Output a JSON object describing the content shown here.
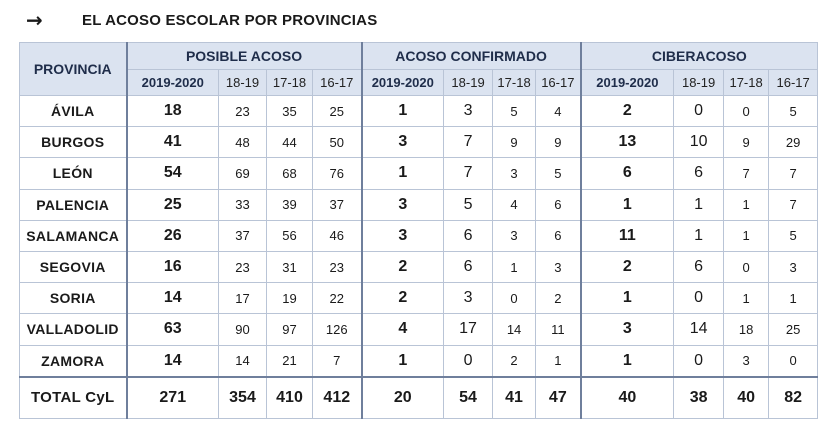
{
  "header": {
    "arrow_icon": "→",
    "title": "EL ACOSO ESCOLAR POR PROVINCIAS"
  },
  "table": {
    "province_header": "PROVINCIA",
    "groups": [
      "POSIBLE ACOSO",
      "ACOSO CONFIRMADO",
      "CIBERACOSO"
    ],
    "years": [
      "2019-2020",
      "18-19",
      "17-18",
      "16-17"
    ],
    "rows": [
      {
        "name": "ÁVILA",
        "v": [
          "18",
          "23",
          "35",
          "25",
          "1",
          "3",
          "5",
          "4",
          "2",
          "0",
          "0",
          "5"
        ]
      },
      {
        "name": "BURGOS",
        "v": [
          "41",
          "48",
          "44",
          "50",
          "3",
          "7",
          "9",
          "9",
          "13",
          "10",
          "9",
          "29"
        ]
      },
      {
        "name": "LEÓN",
        "v": [
          "54",
          "69",
          "68",
          "76",
          "1",
          "7",
          "3",
          "5",
          "6",
          "6",
          "7",
          "7"
        ]
      },
      {
        "name": "PALENCIA",
        "v": [
          "25",
          "33",
          "39",
          "37",
          "3",
          "5",
          "4",
          "6",
          "1",
          "1",
          "1",
          "7"
        ]
      },
      {
        "name": "SALAMANCA",
        "v": [
          "26",
          "37",
          "56",
          "46",
          "3",
          "6",
          "3",
          "6",
          "11",
          "1",
          "1",
          "5"
        ]
      },
      {
        "name": "SEGOVIA",
        "v": [
          "16",
          "23",
          "31",
          "23",
          "2",
          "6",
          "1",
          "3",
          "2",
          "6",
          "0",
          "3"
        ]
      },
      {
        "name": "SORIA",
        "v": [
          "14",
          "17",
          "19",
          "22",
          "2",
          "3",
          "0",
          "2",
          "1",
          "0",
          "1",
          "1"
        ]
      },
      {
        "name": "VALLADOLID",
        "v": [
          "63",
          "90",
          "97",
          "126",
          "4",
          "17",
          "14",
          "11",
          "3",
          "14",
          "18",
          "25"
        ]
      },
      {
        "name": "ZAMORA",
        "v": [
          "14",
          "14",
          "21",
          "7",
          "1",
          "0",
          "2",
          "1",
          "1",
          "0",
          "3",
          "0"
        ]
      }
    ],
    "total": {
      "name": "TOTAL CyL",
      "v": [
        "271",
        "354",
        "410",
        "412",
        "20",
        "54",
        "41",
        "47",
        "40",
        "38",
        "40",
        "82"
      ]
    }
  }
}
